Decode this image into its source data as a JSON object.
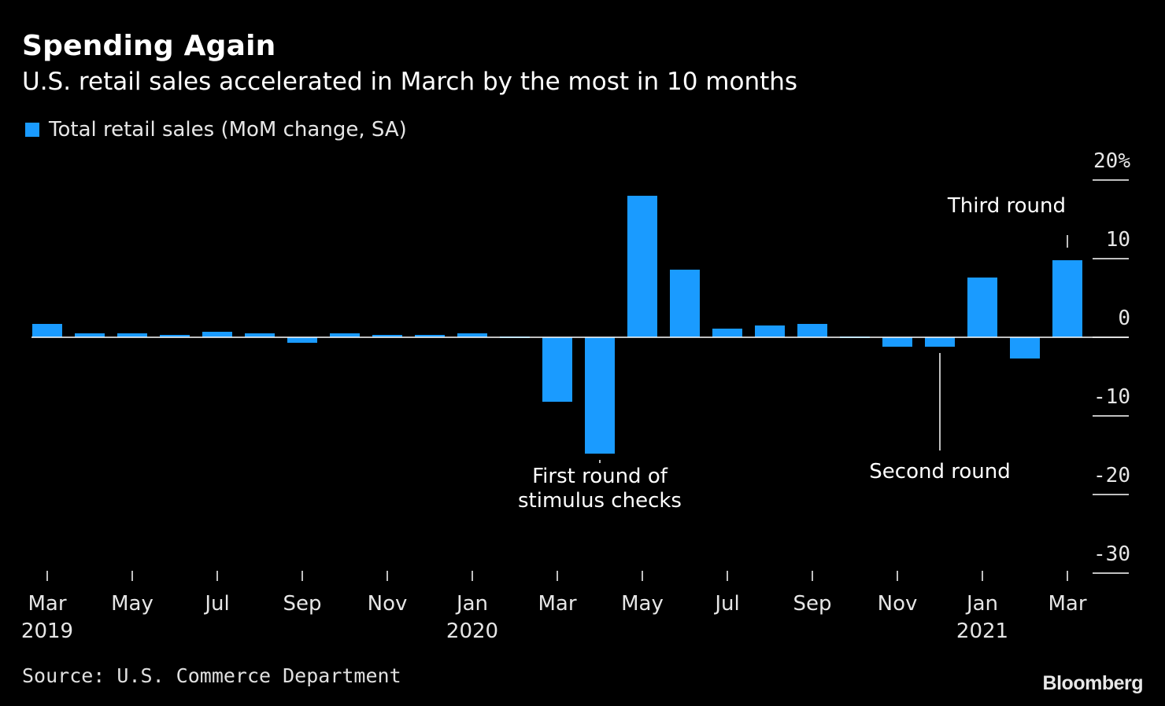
{
  "title": "Spending Again",
  "subtitle": "U.S. retail sales accelerated in March by the most in 10 months",
  "source": "Source: U.S. Commerce Department",
  "brand": "Bloomberg",
  "colors": {
    "bar": "#1a9bff",
    "background": "#000000",
    "text": "#ffffff"
  },
  "chart_data": {
    "type": "bar",
    "series": [
      {
        "name": "Total retail sales (MoM change, SA)",
        "values": [
          1.7,
          0.5,
          0.5,
          0.3,
          0.7,
          0.5,
          -0.7,
          0.5,
          0.3,
          0.3,
          0.5,
          -0.1,
          -8.2,
          -14.8,
          18.0,
          8.6,
          1.1,
          1.5,
          1.7,
          -0.1,
          -1.2,
          -1.2,
          7.6,
          -2.7,
          9.8
        ]
      }
    ],
    "categories": [
      "Mar 2019",
      "Apr 2019",
      "May 2019",
      "Jun 2019",
      "Jul 2019",
      "Aug 2019",
      "Sep 2019",
      "Oct 2019",
      "Nov 2019",
      "Dec 2019",
      "Jan 2020",
      "Feb 2020",
      "Mar 2020",
      "Apr 2020",
      "May 2020",
      "Jun 2020",
      "Jul 2020",
      "Aug 2020",
      "Sep 2020",
      "Oct 2020",
      "Nov 2020",
      "Dec 2020",
      "Jan 2021",
      "Feb 2021",
      "Mar 2021"
    ],
    "x_tick_labels": [
      {
        "index": 0,
        "label": "Mar",
        "year": "2019"
      },
      {
        "index": 2,
        "label": "May",
        "year": ""
      },
      {
        "index": 4,
        "label": "Jul",
        "year": ""
      },
      {
        "index": 6,
        "label": "Sep",
        "year": ""
      },
      {
        "index": 8,
        "label": "Nov",
        "year": ""
      },
      {
        "index": 10,
        "label": "Jan",
        "year": "2020"
      },
      {
        "index": 12,
        "label": "Mar",
        "year": ""
      },
      {
        "index": 14,
        "label": "May",
        "year": ""
      },
      {
        "index": 16,
        "label": "Jul",
        "year": ""
      },
      {
        "index": 18,
        "label": "Sep",
        "year": ""
      },
      {
        "index": 20,
        "label": "Nov",
        "year": ""
      },
      {
        "index": 22,
        "label": "Jan",
        "year": "2021"
      },
      {
        "index": 24,
        "label": "Mar",
        "year": ""
      }
    ],
    "y_ticks": [
      {
        "value": 20,
        "label": "20%"
      },
      {
        "value": 10,
        "label": "10"
      },
      {
        "value": 0,
        "label": "0"
      },
      {
        "value": -10,
        "label": "-10"
      },
      {
        "value": -20,
        "label": "-20"
      },
      {
        "value": -30,
        "label": "-30"
      }
    ],
    "ylim": [
      -30,
      20
    ],
    "grid": false,
    "legend_position": "top-left",
    "annotations": [
      {
        "index": 13,
        "lines": [
          "First round of",
          "stimulus checks"
        ],
        "placement": "below"
      },
      {
        "index": 21,
        "lines": [
          "Second round"
        ],
        "placement": "below"
      },
      {
        "index": 24,
        "lines": [
          "Third round"
        ],
        "placement": "above"
      }
    ]
  }
}
